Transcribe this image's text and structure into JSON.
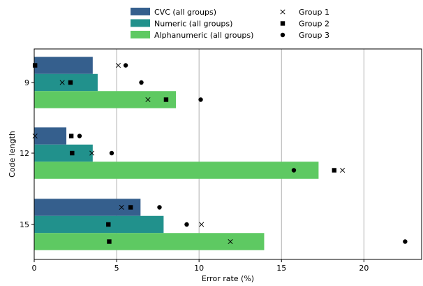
{
  "chart_data": {
    "type": "bar",
    "orientation": "horizontal",
    "xlabel": "Error rate (%)",
    "ylabel": "Code length",
    "xlim": [
      0,
      23.5
    ],
    "xticks": [
      0,
      5,
      10,
      15,
      20
    ],
    "grid": "vertical",
    "categories": [
      "9",
      "12",
      "15"
    ],
    "series": [
      {
        "name": "CVC (all groups)",
        "color": "#355f8d",
        "values": [
          3.55,
          1.95,
          6.45
        ]
      },
      {
        "name": "Numeric (all groups)",
        "color": "#21918c",
        "values": [
          3.85,
          3.55,
          7.85
        ]
      },
      {
        "name": "Alphanumeric (all groups)",
        "color": "#5ec962",
        "values": [
          8.6,
          17.25,
          13.95
        ]
      }
    ],
    "markers": [
      {
        "name": "Group 1",
        "symbol": "x",
        "values": [
          [
            5.1,
            1.7,
            6.9
          ],
          [
            0.05,
            3.5,
            18.7
          ],
          [
            5.3,
            10.15,
            11.9
          ]
        ]
      },
      {
        "name": "Group 2",
        "symbol": "square",
        "values": [
          [
            0.05,
            2.2,
            8.0
          ],
          [
            2.25,
            2.3,
            18.2
          ],
          [
            5.85,
            4.5,
            4.55
          ]
        ]
      },
      {
        "name": "Group 3",
        "symbol": "circle",
        "values": [
          [
            5.55,
            6.5,
            10.1
          ],
          [
            2.75,
            4.7,
            15.75
          ],
          [
            7.6,
            9.25,
            22.5
          ]
        ]
      }
    ],
    "legend": "top-center, outside"
  }
}
